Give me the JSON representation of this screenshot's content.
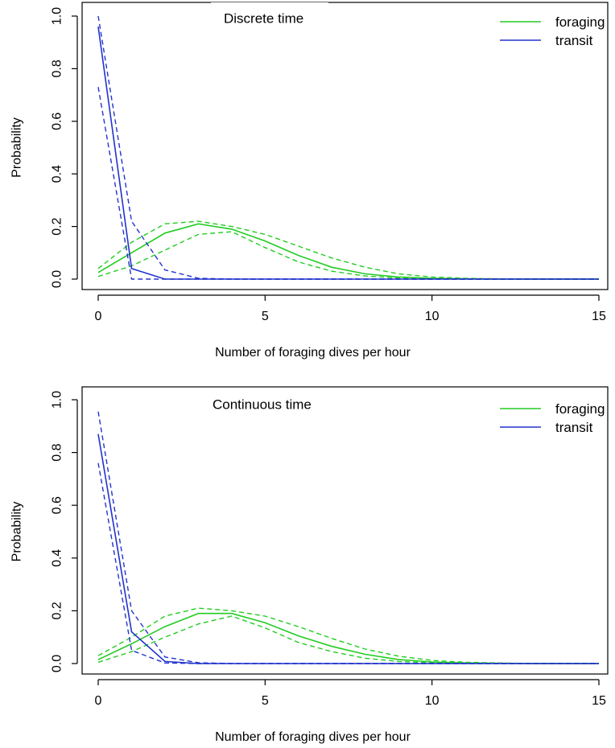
{
  "chart_data": [
    {
      "type": "line",
      "title": "Discrete time",
      "xlabel": "Number of foraging dives per hour",
      "ylabel": "Probability",
      "xlim": [
        0,
        15
      ],
      "ylim": [
        0,
        1
      ],
      "xticks": [
        "0",
        "5",
        "10",
        "15"
      ],
      "yticks": [
        "0.0",
        "0.2",
        "0.4",
        "0.6",
        "0.8",
        "1.0"
      ],
      "grid": false,
      "legend": "top-right",
      "series": [
        {
          "name": "foraging",
          "color": "#22cc22",
          "x": [
            0,
            1,
            2,
            3,
            4,
            5,
            6,
            7,
            8,
            9,
            10,
            11,
            12,
            13,
            14,
            15
          ],
          "mean": [
            0.025,
            0.1,
            0.175,
            0.21,
            0.19,
            0.145,
            0.09,
            0.045,
            0.02,
            0.008,
            0.003,
            0.001,
            0,
            0,
            0,
            0
          ],
          "lower": [
            0.01,
            0.05,
            0.11,
            0.17,
            0.18,
            0.12,
            0.065,
            0.03,
            0.012,
            0.004,
            0.001,
            0,
            0,
            0,
            0,
            0
          ],
          "upper": [
            0.04,
            0.14,
            0.21,
            0.22,
            0.2,
            0.17,
            0.125,
            0.08,
            0.045,
            0.02,
            0.008,
            0.003,
            0.001,
            0,
            0,
            0
          ]
        },
        {
          "name": "transit",
          "color": "#2233cc",
          "x": [
            0,
            1,
            2,
            3,
            4,
            5,
            6,
            7,
            8,
            9,
            10,
            11,
            12,
            13,
            14,
            15
          ],
          "mean": [
            0.96,
            0.04,
            0,
            0,
            0,
            0,
            0,
            0,
            0,
            0,
            0,
            0,
            0,
            0,
            0,
            0
          ],
          "lower": [
            0.73,
            0,
            0,
            0,
            0,
            0,
            0,
            0,
            0,
            0,
            0,
            0,
            0,
            0,
            0,
            0
          ],
          "upper": [
            1.0,
            0.22,
            0.035,
            0.003,
            0,
            0,
            0,
            0,
            0,
            0,
            0,
            0,
            0,
            0,
            0,
            0
          ]
        }
      ]
    },
    {
      "type": "line",
      "title": "Continuous time",
      "xlabel": "Number of foraging dives per hour",
      "ylabel": "Probability",
      "xlim": [
        0,
        15
      ],
      "ylim": [
        0,
        1
      ],
      "xticks": [
        "0",
        "5",
        "10",
        "15"
      ],
      "yticks": [
        "0.0",
        "0.2",
        "0.4",
        "0.6",
        "0.8",
        "1.0"
      ],
      "grid": false,
      "legend": "top-right",
      "series": [
        {
          "name": "foraging",
          "color": "#22cc22",
          "x": [
            0,
            1,
            2,
            3,
            4,
            5,
            6,
            7,
            8,
            9,
            10,
            11,
            12,
            13,
            14,
            15
          ],
          "mean": [
            0.015,
            0.075,
            0.14,
            0.19,
            0.19,
            0.155,
            0.105,
            0.065,
            0.035,
            0.015,
            0.006,
            0.002,
            0.001,
            0,
            0,
            0
          ],
          "lower": [
            0.005,
            0.045,
            0.1,
            0.15,
            0.18,
            0.135,
            0.08,
            0.045,
            0.02,
            0.008,
            0.003,
            0.001,
            0,
            0,
            0,
            0
          ],
          "upper": [
            0.03,
            0.1,
            0.18,
            0.21,
            0.2,
            0.18,
            0.14,
            0.095,
            0.055,
            0.028,
            0.012,
            0.005,
            0.002,
            0,
            0,
            0
          ]
        },
        {
          "name": "transit",
          "color": "#2233cc",
          "x": [
            0,
            1,
            2,
            3,
            4,
            5,
            6,
            7,
            8,
            9,
            10,
            11,
            12,
            13,
            14,
            15
          ],
          "mean": [
            0.87,
            0.12,
            0.008,
            0,
            0,
            0,
            0,
            0,
            0,
            0,
            0,
            0,
            0,
            0,
            0,
            0
          ],
          "lower": [
            0.76,
            0.05,
            0.002,
            0,
            0,
            0,
            0,
            0,
            0,
            0,
            0,
            0,
            0,
            0,
            0,
            0
          ],
          "upper": [
            0.955,
            0.2,
            0.025,
            0.003,
            0,
            0,
            0,
            0,
            0,
            0,
            0,
            0,
            0,
            0,
            0,
            0
          ]
        }
      ]
    }
  ]
}
